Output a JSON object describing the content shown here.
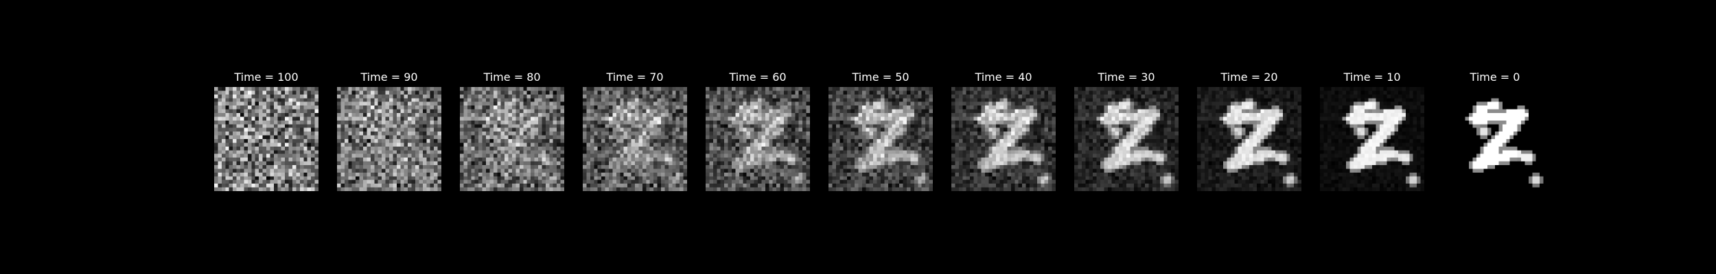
{
  "figure": {
    "background": "#000000",
    "text_color": "#ffffff",
    "frames": [
      {
        "title": "Time = 100",
        "noise_level": 1.0
      },
      {
        "title": "Time = 90",
        "noise_level": 0.9
      },
      {
        "title": "Time = 80",
        "noise_level": 0.8
      },
      {
        "title": "Time = 70",
        "noise_level": 0.7
      },
      {
        "title": "Time = 60",
        "noise_level": 0.6
      },
      {
        "title": "Time = 50",
        "noise_level": 0.5
      },
      {
        "title": "Time = 40",
        "noise_level": 0.4
      },
      {
        "title": "Time = 30",
        "noise_level": 0.3
      },
      {
        "title": "Time = 20",
        "noise_level": 0.2
      },
      {
        "title": "Time = 10",
        "noise_level": 0.1
      },
      {
        "title": "Time = 0",
        "noise_level": 0.0
      }
    ]
  }
}
